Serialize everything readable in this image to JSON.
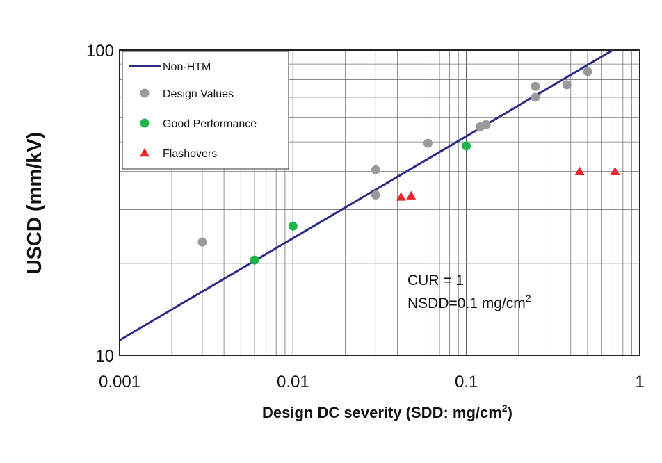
{
  "chart_data": {
    "type": "scatter",
    "xlabel": "Design DC severity (SDD: mg/cm",
    "xlabel_sup": "2",
    "xlabel_end": ")",
    "ylabel": "USCD (mm/kV)",
    "xscale": "log",
    "yscale": "log",
    "xlim": [
      0.001,
      1
    ],
    "ylim": [
      10,
      100
    ],
    "x_ticks": [
      {
        "value": 0.001,
        "label": "0.001"
      },
      {
        "value": 0.01,
        "label": "0.01"
      },
      {
        "value": 0.1,
        "label": "0.1"
      },
      {
        "value": 1,
        "label": "1"
      }
    ],
    "y_ticks": [
      {
        "value": 10,
        "label": "10"
      },
      {
        "value": 100,
        "label": "100"
      }
    ],
    "grid": true,
    "legend_position": "top-left",
    "line": {
      "name": "Non-HTM",
      "color": "#2b2b86",
      "x": [
        0.001,
        0.7
      ],
      "y": [
        11.2,
        100
      ]
    },
    "series": [
      {
        "name": "Design Values",
        "marker": "circle",
        "color": "#999999",
        "points": [
          {
            "x": 0.003,
            "y": 23.5
          },
          {
            "x": 0.03,
            "y": 40.5
          },
          {
            "x": 0.03,
            "y": 33.5
          },
          {
            "x": 0.06,
            "y": 49.5
          },
          {
            "x": 0.12,
            "y": 56
          },
          {
            "x": 0.13,
            "y": 57
          },
          {
            "x": 0.25,
            "y": 76
          },
          {
            "x": 0.25,
            "y": 70
          },
          {
            "x": 0.38,
            "y": 77
          },
          {
            "x": 0.5,
            "y": 85
          }
        ]
      },
      {
        "name": "Good Performance",
        "marker": "circle",
        "color": "#1fb34a",
        "points": [
          {
            "x": 0.006,
            "y": 20.5
          },
          {
            "x": 0.01,
            "y": 26.5
          },
          {
            "x": 0.1,
            "y": 48.5
          }
        ]
      },
      {
        "name": "Flashovers",
        "marker": "triangle",
        "color": "#e8262b",
        "points": [
          {
            "x": 0.042,
            "y": 33
          },
          {
            "x": 0.048,
            "y": 33.3
          },
          {
            "x": 0.45,
            "y": 40
          },
          {
            "x": 0.72,
            "y": 40
          }
        ]
      }
    ],
    "annotations": {
      "line1": "CUR = 1",
      "line2": "NSDD=0.1 mg/cm",
      "line2_sup": "2"
    }
  }
}
